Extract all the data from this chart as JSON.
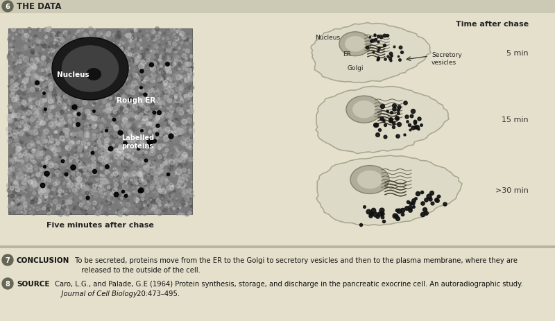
{
  "bg_color": "#e4e0cc",
  "header_bg": "#ccc9b4",
  "header_number": "6",
  "header_text": "THE DATA",
  "bottom_bg": "#d4d0bc",
  "caption_text": "Five minutes after chase",
  "time_label": "Time after chase",
  "times": [
    "5 min",
    "15 min",
    ">30 min"
  ],
  "section7_bold": "CONCLUSION",
  "section7_text": " To be secreted, proteins move from the ER to the Golgi to secretory vesicles and then to the plasma membrane, where they are",
  "section7_text2": "released to the outside of the cell.",
  "section8_bold": "SOURCE",
  "section8_text": " Caro, L.G., and Palade, G.E (1964) Protein synthesis, storage, and discharge in the pancreatic exocrine cell. An autoradiographic study.",
  "section8_italic": "Journal of Cell Biology",
  "section8_text2": " 20:473–495.",
  "cell_bg": "#dddac8",
  "cell_edge": "#aaa890",
  "nucleus_fill": "#b0ad9a",
  "nucleus_inner": "#cac7b4",
  "dot_color": "#111111",
  "fig_w": 8.0,
  "fig_h": 4.64,
  "dpi": 100
}
